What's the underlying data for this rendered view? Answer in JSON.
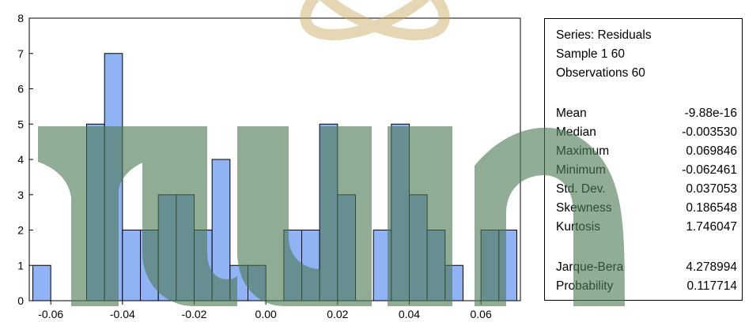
{
  "chart_data": {
    "type": "bar",
    "title": "",
    "xlabel": "",
    "ylabel": "",
    "xlim": [
      -0.066,
      0.071
    ],
    "ylim": [
      0,
      8
    ],
    "bin_width": 0.005,
    "x_ticks": [
      "-0.06",
      "-0.04",
      "-0.02",
      "0.00",
      "0.02",
      "0.04",
      "0.06"
    ],
    "x_tick_values": [
      -0.06,
      -0.04,
      -0.02,
      0.0,
      0.02,
      0.04,
      0.06
    ],
    "y_ticks": [
      "0",
      "1",
      "2",
      "3",
      "4",
      "5",
      "6",
      "7",
      "8"
    ],
    "bins": [
      {
        "x0": -0.065,
        "x1": -0.06,
        "count": 1
      },
      {
        "x0": -0.05,
        "x1": -0.045,
        "count": 5
      },
      {
        "x0": -0.045,
        "x1": -0.04,
        "count": 7
      },
      {
        "x0": -0.04,
        "x1": -0.035,
        "count": 2
      },
      {
        "x0": -0.035,
        "x1": -0.03,
        "count": 2
      },
      {
        "x0": -0.03,
        "x1": -0.025,
        "count": 3
      },
      {
        "x0": -0.025,
        "x1": -0.02,
        "count": 3
      },
      {
        "x0": -0.02,
        "x1": -0.015,
        "count": 2
      },
      {
        "x0": -0.015,
        "x1": -0.01,
        "count": 4
      },
      {
        "x0": -0.01,
        "x1": -0.005,
        "count": 1
      },
      {
        "x0": -0.005,
        "x1": 0.0,
        "count": 1
      },
      {
        "x0": 0.005,
        "x1": 0.01,
        "count": 2
      },
      {
        "x0": 0.01,
        "x1": 0.015,
        "count": 2
      },
      {
        "x0": 0.015,
        "x1": 0.02,
        "count": 5
      },
      {
        "x0": 0.02,
        "x1": 0.025,
        "count": 3
      },
      {
        "x0": 0.03,
        "x1": 0.035,
        "count": 2
      },
      {
        "x0": 0.035,
        "x1": 0.04,
        "count": 5
      },
      {
        "x0": 0.04,
        "x1": 0.045,
        "count": 3
      },
      {
        "x0": 0.045,
        "x1": 0.05,
        "count": 2
      },
      {
        "x0": 0.05,
        "x1": 0.055,
        "count": 1
      },
      {
        "x0": 0.06,
        "x1": 0.065,
        "count": 2
      },
      {
        "x0": 0.065,
        "x1": 0.07,
        "count": 2
      }
    ],
    "grid": false,
    "bar_color": "#8fb3f5",
    "bar_edge_color": "#000000"
  },
  "stats": {
    "series_line": "Series: Residuals",
    "sample_line": "Sample 1 60",
    "observations_line": "Observations 60",
    "rows": [
      {
        "name": "Mean",
        "value": "-9.88e-16"
      },
      {
        "name": "Median",
        "value": "-0.003530"
      },
      {
        "name": "Maximum",
        "value": "0.069846"
      },
      {
        "name": "Minimum",
        "value": "-0.062461"
      },
      {
        "name": "Std. Dev.",
        "value": "0.037053"
      },
      {
        "name": "Skewness",
        "value": "0.186548"
      },
      {
        "name": "Kurtosis",
        "value": "1.746047"
      }
    ],
    "test_rows": [
      {
        "name": "Jarque-Bera",
        "value": "4.278994"
      },
      {
        "name": "Probability",
        "value": "0.117714"
      }
    ]
  },
  "watermark": {
    "color": "#4f7a55",
    "logo_color": "#c8a85a"
  }
}
